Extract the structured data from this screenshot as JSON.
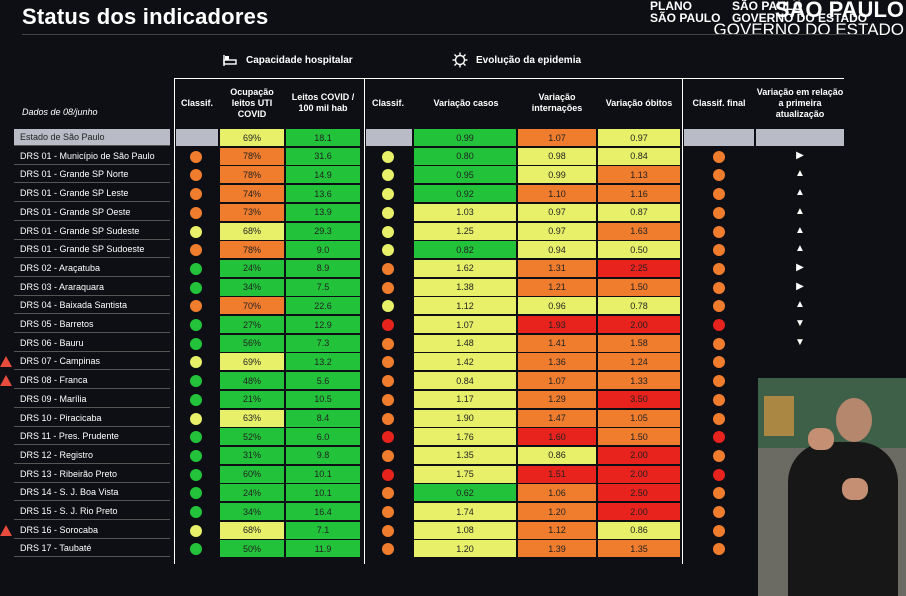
{
  "header": {
    "title": "Status dos indicadores",
    "plano_line1": "PLANO",
    "plano_line2": "SÃO PAULO",
    "gov_line1": "SÃO PAULO",
    "gov_line2": "GOVERNO DO ESTADO",
    "watermark_line1": "SÃO PAULO",
    "watermark_line2": "GOVERNO DO ESTADO"
  },
  "sections": {
    "capacidade": "Capacidade hospitalar",
    "evolucao": "Evolução da epidemia"
  },
  "columns": {
    "date_label": "Dados de 08/junho",
    "classif1": "Classif.",
    "ocupacao": "Ocupação leitos UTI COVID",
    "leitos": "Leitos COVID / 100 mil hab",
    "classif2": "Classif.",
    "casos": "Variação casos",
    "internacoes": "Variação internações",
    "obitos": "Variação óbitos",
    "classif_final": "Classif. final",
    "variacao": "Variação em relação a primeira atualização"
  },
  "colors": {
    "green": "#22c33a",
    "yellow": "#e8f06a",
    "orange": "#f07c2e",
    "red": "#e8221c",
    "grey": "#b9bcc6"
  },
  "rows": [
    {
      "name": "Estado de São Paulo",
      "c1": "",
      "oc": "69%",
      "oc_col": "yellow",
      "le": "18.1",
      "le_col": "green",
      "c2": "",
      "ca": "0.99",
      "ca_col": "green",
      "in": "1.07",
      "in_col": "orange",
      "ob": "0.97",
      "ob_col": "yellow",
      "cf": "",
      "arrow": "",
      "warn": false
    },
    {
      "name": "DRS 01 - Município de São Paulo",
      "c1": "orange",
      "oc": "78%",
      "oc_col": "orange",
      "le": "31.6",
      "le_col": "green",
      "c2": "yellow",
      "ca": "0.80",
      "ca_col": "green",
      "in": "0.98",
      "in_col": "yellow",
      "ob": "0.84",
      "ob_col": "yellow",
      "cf": "orange",
      "arrow": "▶",
      "warn": false
    },
    {
      "name": "DRS 01 - Grande SP Norte",
      "c1": "orange",
      "oc": "78%",
      "oc_col": "orange",
      "le": "14.9",
      "le_col": "green",
      "c2": "yellow",
      "ca": "0.95",
      "ca_col": "green",
      "in": "0.99",
      "in_col": "yellow",
      "ob": "1.13",
      "ob_col": "orange",
      "cf": "orange",
      "arrow": "▲",
      "warn": false
    },
    {
      "name": "DRS 01 - Grande SP Leste",
      "c1": "orange",
      "oc": "74%",
      "oc_col": "orange",
      "le": "13.6",
      "le_col": "green",
      "c2": "yellow",
      "ca": "0.92",
      "ca_col": "green",
      "in": "1.10",
      "in_col": "orange",
      "ob": "1.16",
      "ob_col": "orange",
      "cf": "orange",
      "arrow": "▲",
      "warn": false
    },
    {
      "name": "DRS 01 - Grande SP Oeste",
      "c1": "orange",
      "oc": "73%",
      "oc_col": "orange",
      "le": "13.9",
      "le_col": "green",
      "c2": "yellow",
      "ca": "1.03",
      "ca_col": "yellow",
      "in": "0.97",
      "in_col": "yellow",
      "ob": "0.87",
      "ob_col": "yellow",
      "cf": "orange",
      "arrow": "▲",
      "warn": false
    },
    {
      "name": "DRS 01 - Grande SP Sudeste",
      "c1": "yellow",
      "oc": "68%",
      "oc_col": "yellow",
      "le": "29.3",
      "le_col": "green",
      "c2": "yellow",
      "ca": "1.25",
      "ca_col": "yellow",
      "in": "0.97",
      "in_col": "yellow",
      "ob": "1.63",
      "ob_col": "orange",
      "cf": "orange",
      "arrow": "▲",
      "warn": false
    },
    {
      "name": "DRS 01 - Grande SP Sudoeste",
      "c1": "orange",
      "oc": "78%",
      "oc_col": "orange",
      "le": "9.0",
      "le_col": "green",
      "c2": "yellow",
      "ca": "0.82",
      "ca_col": "green",
      "in": "0.94",
      "in_col": "yellow",
      "ob": "0.50",
      "ob_col": "yellow",
      "cf": "orange",
      "arrow": "▲",
      "warn": false
    },
    {
      "name": "DRS 02 - Araçatuba",
      "c1": "green",
      "oc": "24%",
      "oc_col": "green",
      "le": "8.9",
      "le_col": "green",
      "c2": "orange",
      "ca": "1.62",
      "ca_col": "yellow",
      "in": "1.31",
      "in_col": "orange",
      "ob": "2.25",
      "ob_col": "red",
      "cf": "orange",
      "arrow": "▶",
      "warn": false
    },
    {
      "name": "DRS 03 - Araraquara",
      "c1": "green",
      "oc": "34%",
      "oc_col": "green",
      "le": "7.5",
      "le_col": "green",
      "c2": "orange",
      "ca": "1.38",
      "ca_col": "yellow",
      "in": "1.21",
      "in_col": "orange",
      "ob": "1.50",
      "ob_col": "orange",
      "cf": "orange",
      "arrow": "▶",
      "warn": false
    },
    {
      "name": "DRS 04 - Baixada Santista",
      "c1": "orange",
      "oc": "70%",
      "oc_col": "orange",
      "le": "22.6",
      "le_col": "green",
      "c2": "yellow",
      "ca": "1.12",
      "ca_col": "yellow",
      "in": "0.96",
      "in_col": "yellow",
      "ob": "0.78",
      "ob_col": "yellow",
      "cf": "orange",
      "arrow": "▲",
      "warn": false
    },
    {
      "name": "DRS 05 - Barretos",
      "c1": "green",
      "oc": "27%",
      "oc_col": "green",
      "le": "12.9",
      "le_col": "green",
      "c2": "red",
      "ca": "1.07",
      "ca_col": "yellow",
      "in": "1.93",
      "in_col": "red",
      "ob": "2.00",
      "ob_col": "red",
      "cf": "red",
      "arrow": "▼",
      "warn": false
    },
    {
      "name": "DRS 06 - Bauru",
      "c1": "green",
      "oc": "56%",
      "oc_col": "green",
      "le": "7.3",
      "le_col": "green",
      "c2": "orange",
      "ca": "1.48",
      "ca_col": "yellow",
      "in": "1.41",
      "in_col": "orange",
      "ob": "1.58",
      "ob_col": "orange",
      "cf": "orange",
      "arrow": "▼",
      "warn": false
    },
    {
      "name": "DRS 07 - Campinas",
      "c1": "yellow",
      "oc": "69%",
      "oc_col": "yellow",
      "le": "13.2",
      "le_col": "green",
      "c2": "orange",
      "ca": "1.42",
      "ca_col": "yellow",
      "in": "1.36",
      "in_col": "orange",
      "ob": "1.24",
      "ob_col": "orange",
      "cf": "orange",
      "arrow": "",
      "warn": true
    },
    {
      "name": "DRS 08 - Franca",
      "c1": "green",
      "oc": "48%",
      "oc_col": "green",
      "le": "5.6",
      "le_col": "green",
      "c2": "orange",
      "ca": "0.84",
      "ca_col": "yellow",
      "in": "1.07",
      "in_col": "orange",
      "ob": "1.33",
      "ob_col": "orange",
      "cf": "orange",
      "arrow": "",
      "warn": true
    },
    {
      "name": "DRS 09 - Marília",
      "c1": "green",
      "oc": "21%",
      "oc_col": "green",
      "le": "10.5",
      "le_col": "green",
      "c2": "orange",
      "ca": "1.17",
      "ca_col": "yellow",
      "in": "1.29",
      "in_col": "orange",
      "ob": "3.50",
      "ob_col": "red",
      "cf": "orange",
      "arrow": "",
      "warn": false
    },
    {
      "name": "DRS 10 - Piracicaba",
      "c1": "yellow",
      "oc": "63%",
      "oc_col": "yellow",
      "le": "8.4",
      "le_col": "green",
      "c2": "orange",
      "ca": "1.90",
      "ca_col": "yellow",
      "in": "1.47",
      "in_col": "orange",
      "ob": "1.05",
      "ob_col": "orange",
      "cf": "orange",
      "arrow": "",
      "warn": false
    },
    {
      "name": "DRS 11 - Pres. Prudente",
      "c1": "green",
      "oc": "52%",
      "oc_col": "green",
      "le": "6.0",
      "le_col": "green",
      "c2": "red",
      "ca": "1.76",
      "ca_col": "yellow",
      "in": "1.60",
      "in_col": "red",
      "ob": "1.50",
      "ob_col": "orange",
      "cf": "red",
      "arrow": "",
      "warn": false
    },
    {
      "name": "DRS 12 - Registro",
      "c1": "green",
      "oc": "31%",
      "oc_col": "green",
      "le": "9.8",
      "le_col": "green",
      "c2": "orange",
      "ca": "1.35",
      "ca_col": "yellow",
      "in": "0.86",
      "in_col": "yellow",
      "ob": "2.00",
      "ob_col": "red",
      "cf": "orange",
      "arrow": "",
      "warn": false
    },
    {
      "name": "DRS 13 - Ribeirão Preto",
      "c1": "green",
      "oc": "60%",
      "oc_col": "green",
      "le": "10.1",
      "le_col": "green",
      "c2": "red",
      "ca": "1.75",
      "ca_col": "yellow",
      "in": "1.51",
      "in_col": "red",
      "ob": "2.00",
      "ob_col": "red",
      "cf": "red",
      "arrow": "",
      "warn": false
    },
    {
      "name": "DRS 14 - S. J. Boa Vista",
      "c1": "green",
      "oc": "24%",
      "oc_col": "green",
      "le": "10.1",
      "le_col": "green",
      "c2": "orange",
      "ca": "0.62",
      "ca_col": "green",
      "in": "1.06",
      "in_col": "orange",
      "ob": "2.50",
      "ob_col": "red",
      "cf": "orange",
      "arrow": "",
      "warn": false
    },
    {
      "name": "DRS 15 - S. J. Rio Preto",
      "c1": "green",
      "oc": "34%",
      "oc_col": "green",
      "le": "16.4",
      "le_col": "green",
      "c2": "orange",
      "ca": "1.74",
      "ca_col": "yellow",
      "in": "1.20",
      "in_col": "orange",
      "ob": "2.00",
      "ob_col": "red",
      "cf": "orange",
      "arrow": "",
      "warn": false
    },
    {
      "name": "DRS 16 - Sorocaba",
      "c1": "yellow",
      "oc": "68%",
      "oc_col": "yellow",
      "le": "7.1",
      "le_col": "green",
      "c2": "orange",
      "ca": "1.08",
      "ca_col": "yellow",
      "in": "1.12",
      "in_col": "orange",
      "ob": "0.86",
      "ob_col": "yellow",
      "cf": "orange",
      "arrow": "",
      "warn": true
    },
    {
      "name": "DRS 17 - Taubaté",
      "c1": "green",
      "oc": "50%",
      "oc_col": "green",
      "le": "11.9",
      "le_col": "green",
      "c2": "orange",
      "ca": "1.20",
      "ca_col": "yellow",
      "in": "1.39",
      "in_col": "orange",
      "ob": "1.35",
      "ob_col": "orange",
      "cf": "orange",
      "arrow": "",
      "warn": false
    }
  ]
}
